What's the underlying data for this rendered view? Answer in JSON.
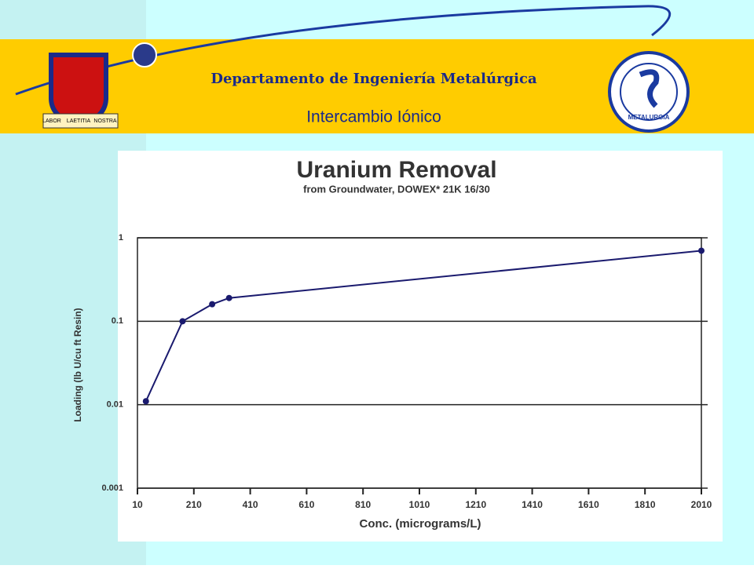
{
  "header": {
    "department": "Departamento de Ingeniería Metalúrgica",
    "subtitle": "Intercambio Iónico",
    "left_logo": [
      "LABOR",
      "LAETITIA",
      "NOSTRA"
    ],
    "right_logo": "METALURGIA"
  },
  "chart_data": {
    "type": "line",
    "title": "Uranium Removal",
    "subtitle": "from Groundwater, DOWEX* 21K 16/30",
    "x_label": "Conc. (micrograms/L)",
    "y_label": "Loading (lb U/cu ft Resin)",
    "x": [
      40,
      170,
      275,
      335,
      2010
    ],
    "series": [
      {
        "color": "#1a1a6e",
        "values": [
          0.011,
          0.1,
          0.16,
          0.19,
          0.7
        ]
      }
    ],
    "xlim": [
      10,
      2010
    ],
    "xticks": [
      10,
      210,
      410,
      610,
      810,
      1010,
      1210,
      1410,
      1610,
      1810,
      2010
    ],
    "ylim": [
      0.001,
      1
    ],
    "yticks": [
      0.001,
      0.01,
      0.1,
      1
    ],
    "y_log": true,
    "grid": true
  }
}
